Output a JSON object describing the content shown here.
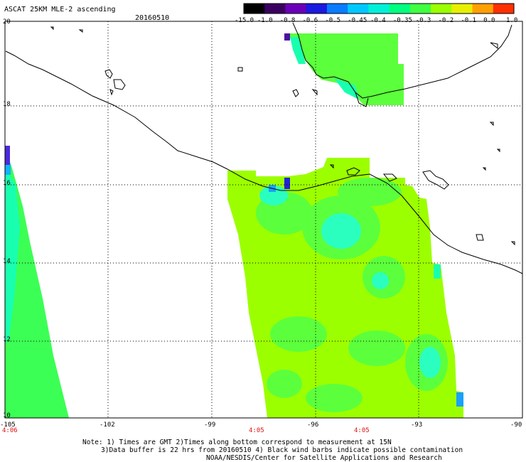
{
  "title": "ASCAT 25KM MLE-2 ascending",
  "date": "20160510",
  "colorbar": {
    "labels": [
      "-15.0",
      "-1.0",
      "-0.8",
      "-0.6",
      "-0.5",
      "-0.45",
      "-0.4",
      "-0.35",
      "-0.3",
      "-0.2",
      "-0.1",
      "0.0",
      "1.0"
    ],
    "colors": [
      "#000000",
      "#3a0060",
      "#6a00b8",
      "#1a1ae0",
      "#0a7cff",
      "#00c8ff",
      "#00f0d8",
      "#00ff80",
      "#40ff40",
      "#9cff00",
      "#e8f000",
      "#ffa000",
      "#ff3000"
    ]
  },
  "axes": {
    "lat_labels": [
      "20",
      "18",
      "16",
      "14",
      "12",
      "10"
    ],
    "lon_labels": [
      "-105",
      "-102",
      "-99",
      "-96",
      "-93",
      "-90"
    ]
  },
  "times": [
    "4:06",
    "4:05",
    "4:05"
  ],
  "notes": [
    "Note: 1) Times are GMT 2)Times along bottom correspond to measurement at 15N",
    "3)Data buffer is 22 hrs from 20160510 4) Black wind barbs indicate possible contamination",
    "NOAA/NESDIS/Center for Satellite Applications and Research"
  ]
}
